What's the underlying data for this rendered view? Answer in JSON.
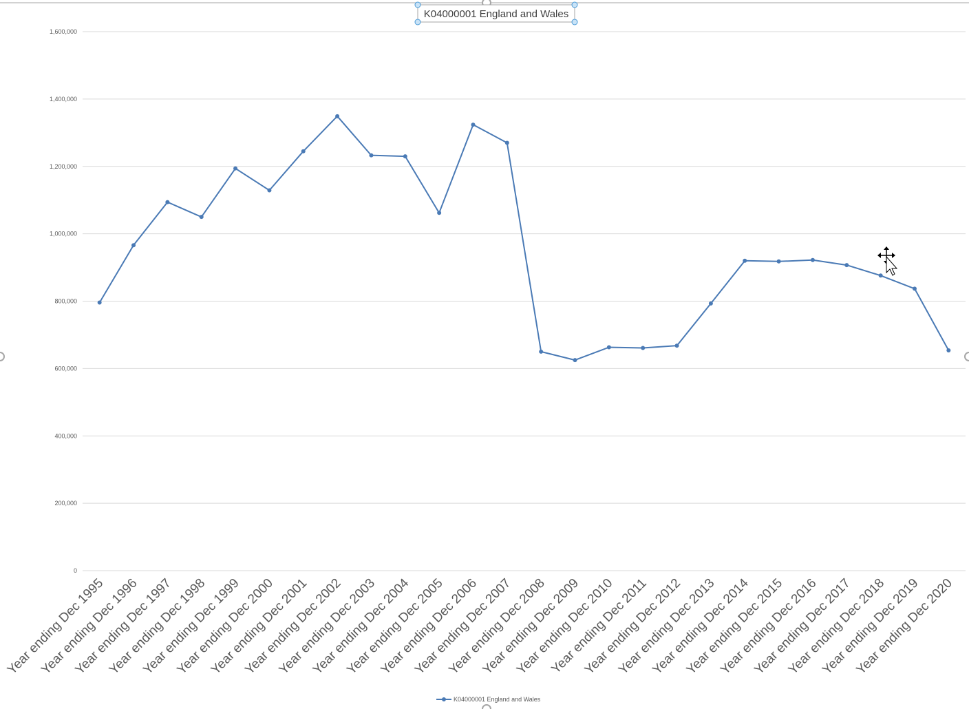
{
  "colors": {
    "series": "#4a7ab5",
    "grid": "#d9d9d9",
    "handle": "#7ab8e8",
    "frame": "#a6a6a6"
  },
  "icons": {
    "cursor": "move-cursor-icon"
  },
  "chart_data": {
    "type": "line",
    "title": "K04000001 England and Wales",
    "xlabel": "",
    "ylabel": "",
    "ylim": [
      0,
      1600000
    ],
    "y_ticks": [
      "0",
      "200,000",
      "400,000",
      "600,000",
      "800,000",
      "1,000,000",
      "1,200,000",
      "1,400,000",
      "1,600,000"
    ],
    "grid": true,
    "legend_position": "bottom",
    "categories": [
      "Year ending Dec 1995",
      "Year ending Dec 1996",
      "Year ending Dec 1997",
      "Year ending Dec 1998",
      "Year ending Dec 1999",
      "Year ending Dec 2000",
      "Year ending Dec 2001",
      "Year ending Dec 2002",
      "Year ending Dec 2003",
      "Year ending Dec 2004",
      "Year ending Dec 2005",
      "Year ending Dec 2006",
      "Year ending Dec 2007",
      "Year ending Dec 2008",
      "Year ending Dec 2009",
      "Year ending Dec 2010",
      "Year ending Dec 2011",
      "Year ending Dec 2012",
      "Year ending Dec 2013",
      "Year ending Dec 2014",
      "Year ending Dec 2015",
      "Year ending Dec 2016",
      "Year ending Dec 2017",
      "Year ending Dec 2018",
      "Year ending Dec 2019",
      "Year ending Dec 2020"
    ],
    "series": [
      {
        "name": "K04000001 England and Wales",
        "values": [
          796000,
          966000,
          1094000,
          1050000,
          1194000,
          1129000,
          1245000,
          1349000,
          1233000,
          1230000,
          1062000,
          1324000,
          1270000,
          650000,
          625000,
          663000,
          661000,
          668000,
          793000,
          920000,
          918000,
          922000,
          907000,
          876000,
          837000,
          654000
        ]
      }
    ]
  }
}
